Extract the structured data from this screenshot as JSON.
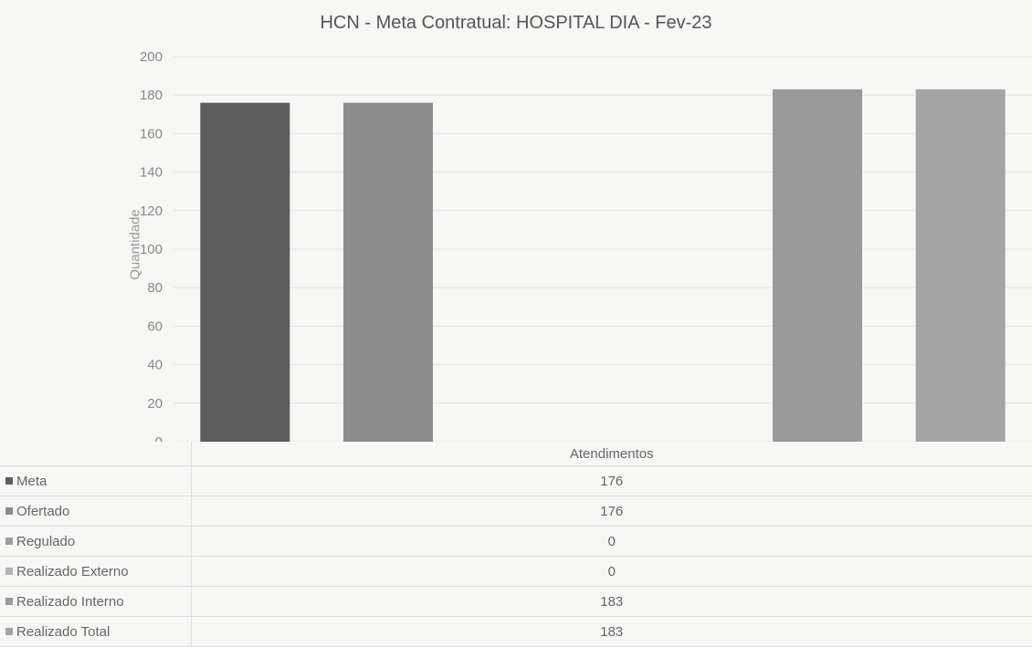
{
  "chart_data": {
    "type": "bar",
    "title": "HCN - Meta Contratual: HOSPITAL DIA - Fev-23",
    "ylabel": "Quantidade",
    "categories": [
      "Atendimentos"
    ],
    "ylim": [
      0,
      200
    ],
    "yticks": [
      0,
      20,
      40,
      60,
      80,
      100,
      120,
      140,
      160,
      180,
      200
    ],
    "grid": true,
    "legend": "table-bottom",
    "series": [
      {
        "name": "Meta",
        "values": [
          176
        ],
        "color": "#5e5e5e"
      },
      {
        "name": "Ofertado",
        "values": [
          176
        ],
        "color": "#8c8c8c"
      },
      {
        "name": "Regulado",
        "values": [
          0
        ],
        "color": "#9e9e9e"
      },
      {
        "name": "Realizado Externo",
        "values": [
          0
        ],
        "color": "#b4b4b4"
      },
      {
        "name": "Realizado Interno",
        "values": [
          183
        ],
        "color": "#9a9a9a"
      },
      {
        "name": "Realizado Total",
        "values": [
          183
        ],
        "color": "#a4a4a4"
      }
    ]
  }
}
